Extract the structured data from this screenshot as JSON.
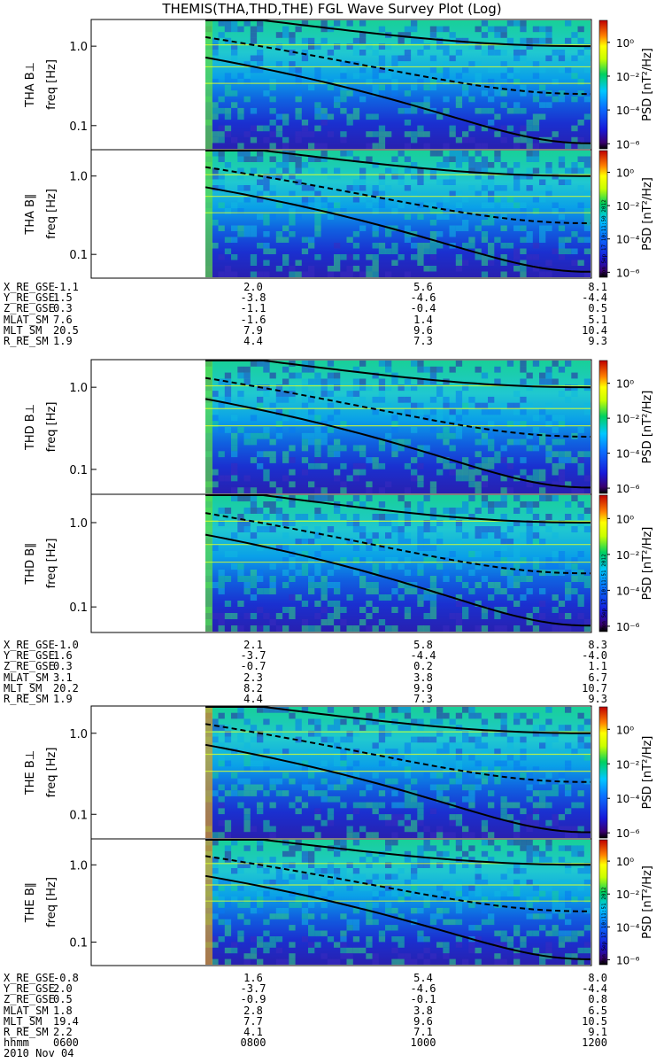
{
  "title": "THEMIS(THA,THD,THE) FGL Wave Survey Plot (Log)",
  "stamp": "Mon Sep 17 10:11:50 2012",
  "stamp2": "Mon Sep 17 10:11:51 2012",
  "colorbar": {
    "label": "PSD [nT²/Hz]",
    "ticks": [
      "10⁰",
      "10⁻²",
      "10⁻⁴",
      "10⁻⁶"
    ],
    "tick_exponents": [
      0,
      -2,
      -4,
      -6
    ]
  },
  "freq_label": "freq [Hz]",
  "chart_data": [
    {
      "type": "heatmap",
      "probe": "THA",
      "component": "THA B⊥",
      "ylabel": "freq [Hz]",
      "yscale": "log",
      "yticks": [
        "1.0",
        "0.1"
      ],
      "colorscale": "log",
      "zlabel": "PSD [nT²/Hz]",
      "zrange": [
        1e-06,
        10
      ],
      "data_start": "0640"
    },
    {
      "type": "heatmap",
      "probe": "THA",
      "component": "THA B∥",
      "ylabel": "freq [Hz]",
      "yscale": "log",
      "yticks": [
        "1.0",
        "0.1"
      ],
      "colorscale": "log",
      "zlabel": "PSD [nT²/Hz]",
      "zrange": [
        1e-06,
        10
      ],
      "data_start": "0640"
    },
    {
      "type": "heatmap",
      "probe": "THD",
      "component": "THD B⊥",
      "ylabel": "freq [Hz]",
      "yscale": "log",
      "yticks": [
        "1.0",
        "0.1"
      ],
      "colorscale": "log",
      "zlabel": "PSD [nT²/Hz]",
      "zrange": [
        1e-06,
        10
      ],
      "data_start": "0640"
    },
    {
      "type": "heatmap",
      "probe": "THD",
      "component": "THD B∥",
      "ylabel": "freq [Hz]",
      "yscale": "log",
      "yticks": [
        "1.0",
        "0.1"
      ],
      "colorscale": "log",
      "zlabel": "PSD [nT²/Hz]",
      "zrange": [
        1e-06,
        10
      ],
      "data_start": "0640"
    },
    {
      "type": "heatmap",
      "probe": "THE",
      "component": "THE B⊥",
      "ylabel": "freq [Hz]",
      "yscale": "log",
      "yticks": [
        "1.0",
        "0.1"
      ],
      "colorscale": "log",
      "zlabel": "PSD [nT²/Hz]",
      "zrange": [
        1e-06,
        10
      ],
      "data_start": "0640"
    },
    {
      "type": "heatmap",
      "probe": "THE",
      "component": "THE B∥",
      "ylabel": "freq [Hz]",
      "yscale": "log",
      "yticks": [
        "1.0",
        "0.1"
      ],
      "colorscale": "log",
      "zlabel": "PSD [nT²/Hz]",
      "zrange": [
        1e-06,
        10
      ],
      "data_start": "0640"
    }
  ],
  "ephemeris": [
    {
      "rows": [
        {
          "label": "X_RE_GSE",
          "values": [
            "-1.1",
            "2.0",
            "5.6",
            "8.1"
          ]
        },
        {
          "label": "Y_RE_GSE",
          "values": [
            "1.5",
            "-3.8",
            "-4.6",
            "-4.4"
          ]
        },
        {
          "label": "Z_RE_GSE",
          "values": [
            "0.3",
            "-1.1",
            "-0.4",
            "0.5"
          ]
        },
        {
          "label": "MLAT_SM",
          "values": [
            "7.6",
            "-1.6",
            "1.4",
            "5.1"
          ]
        },
        {
          "label": "MLT_SM",
          "values": [
            "20.5",
            "7.9",
            "9.6",
            "10.4"
          ]
        },
        {
          "label": "R_RE_SM",
          "values": [
            "1.9",
            "4.4",
            "7.3",
            "9.3"
          ]
        }
      ]
    },
    {
      "rows": [
        {
          "label": "X_RE_GSE",
          "values": [
            "-1.0",
            "2.1",
            "5.8",
            "8.3"
          ]
        },
        {
          "label": "Y_RE_GSE",
          "values": [
            "1.6",
            "-3.7",
            "-4.4",
            "-4.0"
          ]
        },
        {
          "label": "Z_RE_GSE",
          "values": [
            "0.3",
            "-0.7",
            "0.2",
            "1.1"
          ]
        },
        {
          "label": "MLAT_SM",
          "values": [
            "3.1",
            "2.3",
            "3.8",
            "6.7"
          ]
        },
        {
          "label": "MLT_SM",
          "values": [
            "20.2",
            "8.2",
            "9.9",
            "10.7"
          ]
        },
        {
          "label": "R_RE_SM",
          "values": [
            "1.9",
            "4.4",
            "7.3",
            "9.3"
          ]
        }
      ]
    },
    {
      "rows": [
        {
          "label": "X_RE_GSE",
          "values": [
            "-0.8",
            "1.6",
            "5.4",
            "8.0"
          ]
        },
        {
          "label": "Y_RE_GSE",
          "values": [
            "2.0",
            "-3.7",
            "-4.6",
            "-4.4"
          ]
        },
        {
          "label": "Z_RE_GSE",
          "values": [
            "0.5",
            "-0.9",
            "-0.1",
            "0.8"
          ]
        },
        {
          "label": "MLAT_SM",
          "values": [
            "1.8",
            "2.8",
            "3.8",
            "6.5"
          ]
        },
        {
          "label": "MLT_SM",
          "values": [
            "19.4",
            "7.7",
            "9.6",
            "10.5"
          ]
        },
        {
          "label": "R_RE_SM",
          "values": [
            "2.2",
            "4.1",
            "7.1",
            "9.1"
          ]
        },
        {
          "label": "hhmm",
          "values": [
            "0600",
            "0800",
            "1000",
            "1200"
          ]
        }
      ]
    }
  ],
  "date": "2010 Nov 04"
}
